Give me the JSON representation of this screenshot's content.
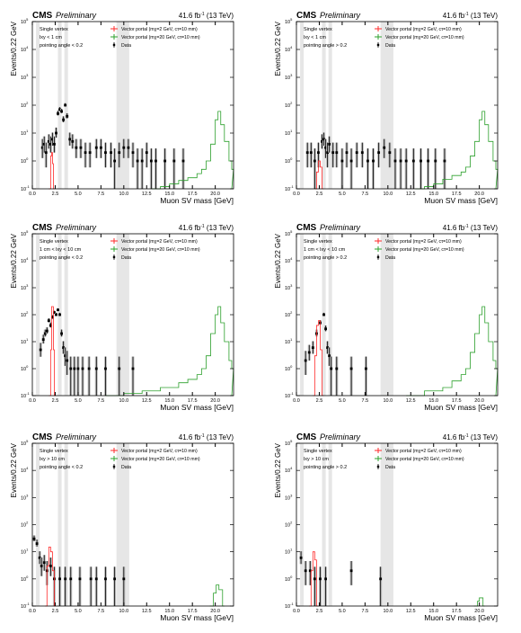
{
  "header": {
    "experiment": "CMS",
    "status": "Preliminary",
    "luminosity": "41.6 fb",
    "lumi_exponent": "-1",
    "energy": "(13 TeV)"
  },
  "axes": {
    "xlabel": "Muon SV mass [GeV]",
    "ylabel": "Events/0.22 GeV",
    "xticks": [
      "0.0",
      "2.5",
      "5.0",
      "7.5",
      "10.0",
      "12.5",
      "15.0",
      "17.5",
      "20.0"
    ],
    "yticks": [
      {
        "base": "10",
        "exp": "-1"
      },
      {
        "base": "10",
        "exp": "0"
      },
      {
        "base": "10",
        "exp": "1"
      },
      {
        "base": "10",
        "exp": "2"
      },
      {
        "base": "10",
        "exp": "3"
      },
      {
        "base": "10",
        "exp": "4"
      },
      {
        "base": "10",
        "exp": "5"
      }
    ]
  },
  "legend": {
    "signal1": "Vector portal (mχ=2 GeV, cτ=10 mm)",
    "signal2": "Vector portal (mχ=20 GeV, cτ=10 mm)",
    "data": "Data"
  },
  "colors": {
    "signal1": "#ff2a2a",
    "signal2": "#2ca02c",
    "data": "#000000",
    "band": "#e6e6e6"
  },
  "chart_data": [
    {
      "type": "line",
      "cat": [
        "Single vertex",
        "lxy < 1 cm",
        "pointing angle < 0.2"
      ],
      "ylog": true,
      "ylim": [
        0.1,
        100000
      ],
      "xlim": [
        0,
        22
      ],
      "vetobands": [
        [
          0.4,
          0.8
        ],
        [
          2.8,
          3.2
        ],
        [
          3.5,
          3.9
        ],
        [
          9.2,
          10.6
        ]
      ],
      "data": [
        [
          1.1,
          3
        ],
        [
          1.3,
          4
        ],
        [
          1.5,
          2
        ],
        [
          1.8,
          5
        ],
        [
          2.0,
          4
        ],
        [
          2.2,
          6
        ],
        [
          2.4,
          4
        ],
        [
          2.6,
          10
        ],
        [
          2.8,
          50
        ],
        [
          3.0,
          70
        ],
        [
          3.2,
          60
        ],
        [
          3.4,
          30
        ],
        [
          3.6,
          100
        ],
        [
          3.8,
          40
        ],
        [
          4.1,
          6
        ],
        [
          4.4,
          5
        ],
        [
          4.8,
          3
        ],
        [
          5.3,
          3
        ],
        [
          5.8,
          2
        ],
        [
          6.3,
          2
        ],
        [
          7.0,
          3
        ],
        [
          7.5,
          3
        ],
        [
          8.0,
          2
        ],
        [
          8.6,
          2
        ],
        [
          9.0,
          1
        ],
        [
          9.5,
          2
        ],
        [
          10.0,
          3
        ],
        [
          10.5,
          3
        ],
        [
          11.0,
          2
        ],
        [
          11.5,
          1
        ],
        [
          12.0,
          1
        ],
        [
          12.5,
          2
        ],
        [
          13.0,
          1
        ],
        [
          13.5,
          1
        ],
        [
          14.5,
          1
        ],
        [
          15.5,
          1
        ],
        [
          16.5,
          1
        ]
      ],
      "signal1": [
        [
          1.8,
          0.1
        ],
        [
          2.0,
          1.5
        ],
        [
          2.1,
          2
        ],
        [
          2.2,
          0.8
        ],
        [
          2.3,
          0.1
        ]
      ],
      "signal2": [
        [
          13,
          0.1
        ],
        [
          14,
          0.12
        ],
        [
          15,
          0.15
        ],
        [
          16,
          0.2
        ],
        [
          17,
          0.25
        ],
        [
          18,
          0.35
        ],
        [
          18.5,
          0.5
        ],
        [
          19,
          1
        ],
        [
          19.5,
          4
        ],
        [
          20,
          30
        ],
        [
          20.3,
          60
        ],
        [
          20.6,
          20
        ],
        [
          21,
          5
        ],
        [
          21.5,
          1
        ],
        [
          21.8,
          0.5
        ]
      ]
    },
    {
      "type": "line",
      "cat": [
        "Single vertex",
        "lxy < 1 cm",
        "pointing angle > 0.2"
      ],
      "ylog": true,
      "ylim": [
        0.1,
        100000
      ],
      "xlim": [
        0,
        22
      ],
      "vetobands": [
        [
          0.4,
          0.8
        ],
        [
          2.8,
          3.2
        ],
        [
          3.5,
          3.9
        ],
        [
          9.2,
          10.6
        ]
      ],
      "data": [
        [
          1.2,
          2
        ],
        [
          1.6,
          2
        ],
        [
          2.0,
          1
        ],
        [
          2.4,
          2
        ],
        [
          2.8,
          5
        ],
        [
          3.0,
          6
        ],
        [
          3.2,
          3
        ],
        [
          3.4,
          2
        ],
        [
          3.6,
          4
        ],
        [
          4.0,
          2
        ],
        [
          4.4,
          2
        ],
        [
          5.0,
          1
        ],
        [
          5.5,
          2
        ],
        [
          6.0,
          1
        ],
        [
          6.6,
          2
        ],
        [
          7.2,
          2
        ],
        [
          7.8,
          1
        ],
        [
          8.4,
          1
        ],
        [
          9.0,
          2
        ],
        [
          9.6,
          3
        ],
        [
          10.2,
          2
        ],
        [
          10.8,
          1
        ],
        [
          11.4,
          1
        ],
        [
          12.0,
          1
        ],
        [
          12.8,
          1
        ],
        [
          13.6,
          1
        ],
        [
          14.4,
          1
        ],
        [
          15.2,
          1
        ],
        [
          16.2,
          1
        ]
      ],
      "signal1": [
        [
          2.0,
          0.1
        ],
        [
          2.2,
          0.4
        ],
        [
          2.4,
          1
        ],
        [
          2.6,
          0.6
        ],
        [
          2.8,
          0.1
        ]
      ],
      "signal2": [
        [
          13,
          0.1
        ],
        [
          14,
          0.12
        ],
        [
          15,
          0.15
        ],
        [
          16,
          0.22
        ],
        [
          17,
          0.3
        ],
        [
          18,
          0.4
        ],
        [
          18.5,
          0.6
        ],
        [
          19,
          1.5
        ],
        [
          19.5,
          5
        ],
        [
          20,
          30
        ],
        [
          20.3,
          60
        ],
        [
          20.6,
          20
        ],
        [
          21,
          5
        ],
        [
          21.5,
          1
        ],
        [
          21.8,
          0.5
        ]
      ]
    },
    {
      "type": "line",
      "cat": [
        "Single vertex",
        "1 cm < lxy < 10 cm",
        "pointing angle < 0.2"
      ],
      "ylog": true,
      "ylim": [
        0.1,
        100000
      ],
      "xlim": [
        0,
        22
      ],
      "vetobands": [
        [
          0.4,
          0.8
        ],
        [
          2.8,
          3.2
        ],
        [
          3.5,
          3.9
        ],
        [
          9.2,
          10.6
        ]
      ],
      "data": [
        [
          0.9,
          5
        ],
        [
          1.2,
          12
        ],
        [
          1.4,
          20
        ],
        [
          1.6,
          25
        ],
        [
          1.8,
          60
        ],
        [
          2.0,
          40
        ],
        [
          2.2,
          80
        ],
        [
          2.4,
          120
        ],
        [
          2.6,
          100
        ],
        [
          2.8,
          150
        ],
        [
          3.0,
          100
        ],
        [
          3.2,
          20
        ],
        [
          3.4,
          6
        ],
        [
          3.6,
          3
        ],
        [
          3.8,
          2
        ],
        [
          4.2,
          1
        ],
        [
          4.6,
          1
        ],
        [
          5.0,
          1
        ],
        [
          5.5,
          1
        ],
        [
          6.2,
          1
        ],
        [
          7.0,
          1
        ],
        [
          8.0,
          1
        ],
        [
          9.5,
          1
        ],
        [
          11.0,
          1
        ]
      ],
      "signal1": [
        [
          1.8,
          0.1
        ],
        [
          2.0,
          5
        ],
        [
          2.1,
          200
        ],
        [
          2.2,
          200
        ],
        [
          2.3,
          5
        ],
        [
          2.4,
          0.1
        ]
      ],
      "signal2": [
        [
          8,
          0.1
        ],
        [
          10,
          0.12
        ],
        [
          12,
          0.15
        ],
        [
          14,
          0.2
        ],
        [
          16,
          0.3
        ],
        [
          17,
          0.4
        ],
        [
          18,
          0.6
        ],
        [
          18.5,
          1
        ],
        [
          19,
          3
        ],
        [
          19.5,
          20
        ],
        [
          20,
          100
        ],
        [
          20.3,
          200
        ],
        [
          20.6,
          50
        ],
        [
          21,
          10
        ],
        [
          21.5,
          2
        ],
        [
          21.8,
          1
        ]
      ]
    },
    {
      "type": "line",
      "cat": [
        "Single vertex",
        "1 cm < lxy < 10 cm",
        "pointing angle > 0.2"
      ],
      "ylog": true,
      "ylim": [
        0.1,
        100000
      ],
      "xlim": [
        0,
        22
      ],
      "vetobands": [
        [
          0.4,
          0.8
        ],
        [
          2.8,
          3.2
        ],
        [
          3.5,
          3.9
        ],
        [
          9.2,
          10.6
        ]
      ],
      "data": [
        [
          1.0,
          2
        ],
        [
          1.4,
          4
        ],
        [
          1.8,
          6
        ],
        [
          2.2,
          20
        ],
        [
          2.6,
          50
        ],
        [
          3.0,
          100
        ],
        [
          3.2,
          30
        ],
        [
          3.4,
          6
        ],
        [
          3.6,
          3
        ],
        [
          3.8,
          1
        ],
        [
          4.4,
          1
        ],
        [
          6.0,
          1
        ],
        [
          7.6,
          1
        ]
      ],
      "signal1": [
        [
          1.8,
          0.1
        ],
        [
          2.0,
          3
        ],
        [
          2.2,
          40
        ],
        [
          2.4,
          60
        ],
        [
          2.6,
          5
        ],
        [
          2.8,
          0.1
        ]
      ],
      "signal2": [
        [
          12,
          0.1
        ],
        [
          14,
          0.15
        ],
        [
          16,
          0.2
        ],
        [
          17,
          0.35
        ],
        [
          18,
          0.6
        ],
        [
          18.5,
          1
        ],
        [
          19,
          4
        ],
        [
          19.5,
          20
        ],
        [
          20,
          100
        ],
        [
          20.3,
          200
        ],
        [
          20.6,
          50
        ],
        [
          21,
          10
        ],
        [
          21.5,
          2
        ],
        [
          21.8,
          1
        ]
      ]
    },
    {
      "type": "line",
      "cat": [
        "Single vertex",
        "lxy > 10 cm",
        "pointing angle < 0.2"
      ],
      "ylog": true,
      "ylim": [
        0.1,
        100000
      ],
      "xlim": [
        0,
        22
      ],
      "vetobands": [
        [
          0.4,
          0.8
        ],
        [
          2.8,
          3.2
        ],
        [
          3.5,
          3.9
        ],
        [
          9.2,
          10.6
        ]
      ],
      "data": [
        [
          0.2,
          30
        ],
        [
          0.5,
          20
        ],
        [
          0.8,
          6
        ],
        [
          1.0,
          3
        ],
        [
          1.3,
          4
        ],
        [
          1.6,
          2
        ],
        [
          2.0,
          3
        ],
        [
          2.4,
          1
        ],
        [
          3.0,
          1
        ],
        [
          3.6,
          1
        ],
        [
          4.2,
          1
        ],
        [
          5.2,
          1
        ],
        [
          6.4,
          1
        ],
        [
          7.0,
          1
        ],
        [
          8.0,
          1
        ],
        [
          9.0,
          1
        ],
        [
          10.0,
          1
        ]
      ],
      "signal1": [
        [
          1.4,
          0.1
        ],
        [
          1.6,
          3
        ],
        [
          1.8,
          15
        ],
        [
          2.0,
          10
        ],
        [
          2.2,
          2
        ],
        [
          2.4,
          0.1
        ]
      ],
      "signal2": [
        [
          19.4,
          0.1
        ],
        [
          19.8,
          0.3
        ],
        [
          20.1,
          0.6
        ],
        [
          20.4,
          0.4
        ],
        [
          20.8,
          0.1
        ]
      ]
    },
    {
      "type": "line",
      "cat": [
        "Single vertex",
        "lxy > 10 cm",
        "pointing angle > 0.2"
      ],
      "ylog": true,
      "ylim": [
        0.1,
        100000
      ],
      "xlim": [
        0,
        22
      ],
      "vetobands": [
        [
          0.4,
          0.8
        ],
        [
          2.8,
          3.2
        ],
        [
          3.5,
          3.9
        ],
        [
          9.2,
          10.6
        ]
      ],
      "data": [
        [
          0.5,
          6
        ],
        [
          1.0,
          2
        ],
        [
          1.5,
          2
        ],
        [
          2.0,
          1
        ],
        [
          2.6,
          1
        ],
        [
          3.2,
          1
        ],
        [
          6.0,
          2
        ],
        [
          9.2,
          1
        ]
      ],
      "signal1": [
        [
          1.4,
          0.1
        ],
        [
          1.6,
          2
        ],
        [
          1.8,
          10
        ],
        [
          2.0,
          5
        ],
        [
          2.2,
          0.1
        ]
      ],
      "signal2": [
        [
          19.4,
          0.1
        ],
        [
          19.8,
          0.15
        ],
        [
          20.0,
          0.2
        ],
        [
          20.4,
          0.1
        ]
      ]
    }
  ]
}
